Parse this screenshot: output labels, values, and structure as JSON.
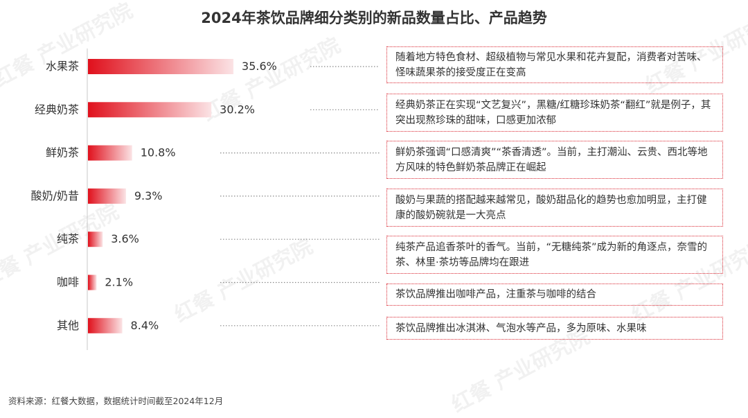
{
  "title": "2024年茶饮品牌细分类别的新品数量占比、产品趋势",
  "source": "资料来源：红餐大数据，数据统计时间截至2024年12月",
  "watermark": "红餐 产业研究院",
  "colors": {
    "bar_start": "#e0101c",
    "bar_end": "#fbe3e5",
    "box_border": "#d9242f"
  },
  "chart_data": {
    "type": "bar",
    "orientation": "horizontal",
    "title": "2024年茶饮品牌细分类别的新品数量占比、产品趋势",
    "categories": [
      "水果茶",
      "经典奶茶",
      "鲜奶茶",
      "酸奶/奶昔",
      "纯茶",
      "咖啡",
      "其他"
    ],
    "values": [
      35.6,
      30.2,
      10.8,
      9.3,
      3.6,
      2.1,
      8.4
    ],
    "value_labels": [
      "35.6%",
      "30.2%",
      "10.8%",
      "9.3%",
      "3.6%",
      "2.1%",
      "8.4%"
    ],
    "unit": "%",
    "xlim": [
      0,
      40
    ],
    "grid": false,
    "legend": "none",
    "annotations": [
      "随着地方特色食材、超级植物与常见水果和花卉复配，消费者对苦味、怪味蔬果茶的接受度正在变高",
      "经典奶茶正在实现“文艺复兴”，黑糖/红糖珍珠奶茶“翻红”就是例子，其突出现熬珍珠的甜味，口感更加浓郁",
      "鲜奶茶强调“口感清爽”“茶香清透”。当前，主打潮汕、云贵、西北等地方风味的特色鲜奶茶品牌正在崛起",
      "酸奶与果蔬的搭配越来越常见，酸奶甜品化的趋势也愈加明显，主打健康的酸奶碗就是一大亮点",
      "纯茶产品追香茶叶的香气。当前，“无糖纯茶”成为新的角逐点，奈雪的茶、林里·茶坊等品牌均在跟进",
      "茶饮品牌推出咖啡产品，注重茶与咖啡的结合",
      "茶饮品牌推出冰淇淋、气泡水等产品，多为原味、水果味"
    ]
  }
}
